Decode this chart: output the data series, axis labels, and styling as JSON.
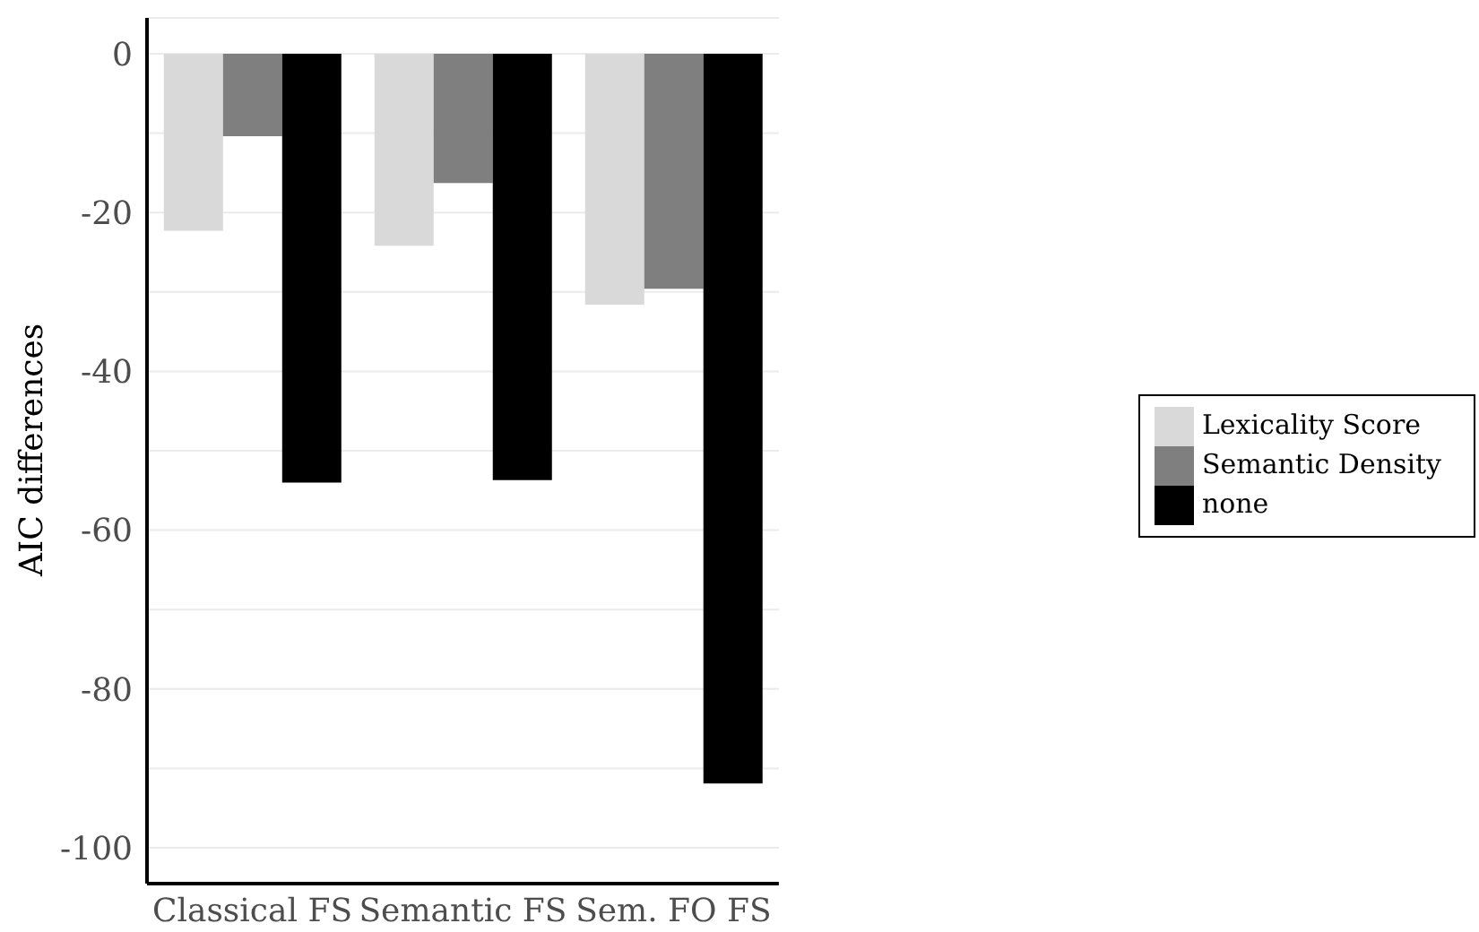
{
  "chart_data": {
    "type": "bar",
    "ylabel": "AIC differences",
    "categories": [
      "Classical FS",
      "Semantic FS",
      "Sem. FO FS"
    ],
    "series": [
      {
        "name": "Lexicality Score",
        "color": "#d9d9d9",
        "values": [
          -22.3,
          -24.2,
          -31.6
        ]
      },
      {
        "name": "Semantic Density",
        "color": "#7f7f7f",
        "values": [
          -10.4,
          -16.3,
          -29.6
        ]
      },
      {
        "name": "none",
        "color": "#000000",
        "values": [
          -54,
          -53.7,
          -91.9
        ]
      }
    ],
    "ylim": [
      -104.5,
      4.5
    ],
    "yticks": [
      -100,
      {
        "value": -90,
        "label": null
      },
      -80,
      {
        "value": -70,
        "label": null
      },
      -60,
      {
        "value": -50,
        "label": null
      },
      -40,
      {
        "value": -30,
        "label": null
      },
      -20,
      {
        "value": -10,
        "label": null
      },
      0
    ],
    "grid": "y",
    "legend": "right"
  }
}
